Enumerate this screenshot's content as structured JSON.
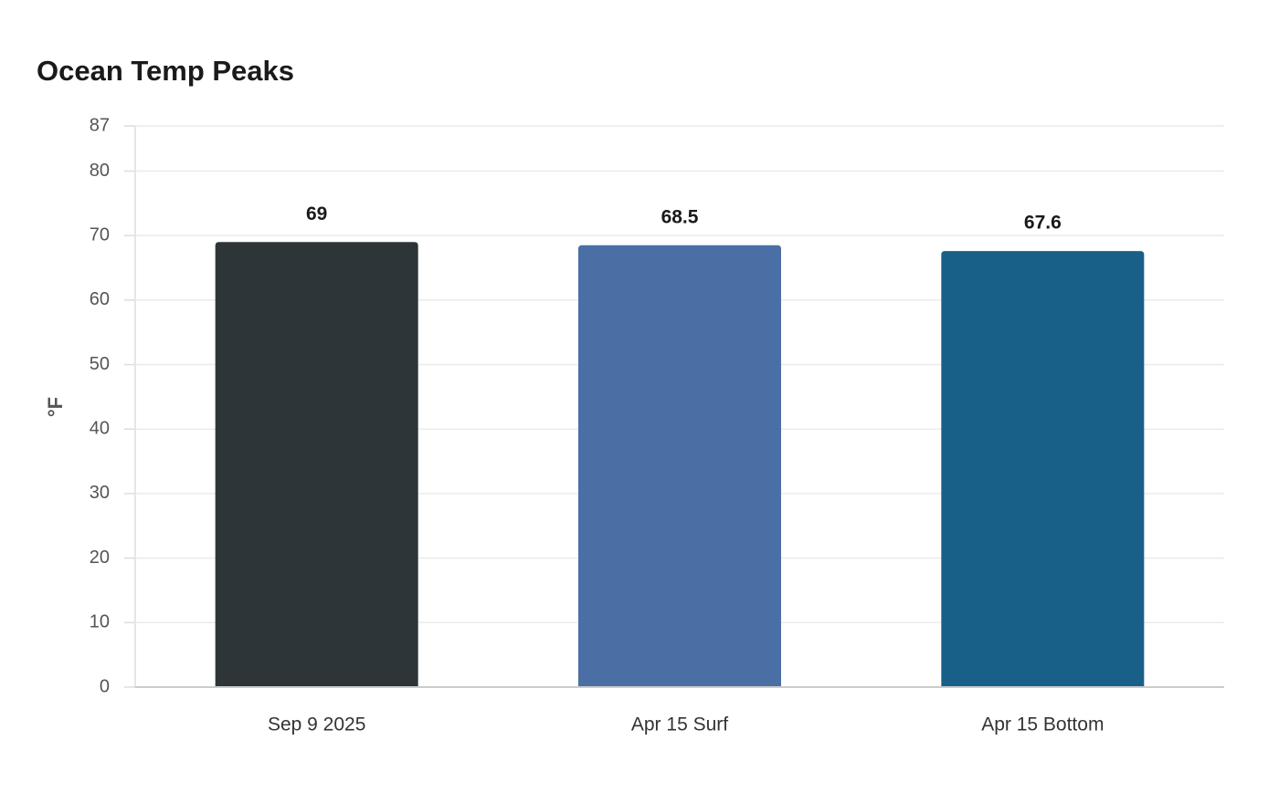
{
  "chart_data": {
    "type": "bar",
    "title": "Ocean Temp Peaks",
    "y_label": "°F",
    "categories": [
      "Sep 9 2025",
      "Apr 15 Surf",
      "Apr 15 Bottom"
    ],
    "values": [
      69,
      68.5,
      67.6
    ],
    "colors": [
      "#2e3538",
      "#4a6fa5",
      "#196089"
    ],
    "ylim": [
      0,
      87
    ],
    "yticks": [
      0,
      10,
      20,
      30,
      40,
      50,
      60,
      70,
      80,
      87
    ],
    "grid": true
  }
}
